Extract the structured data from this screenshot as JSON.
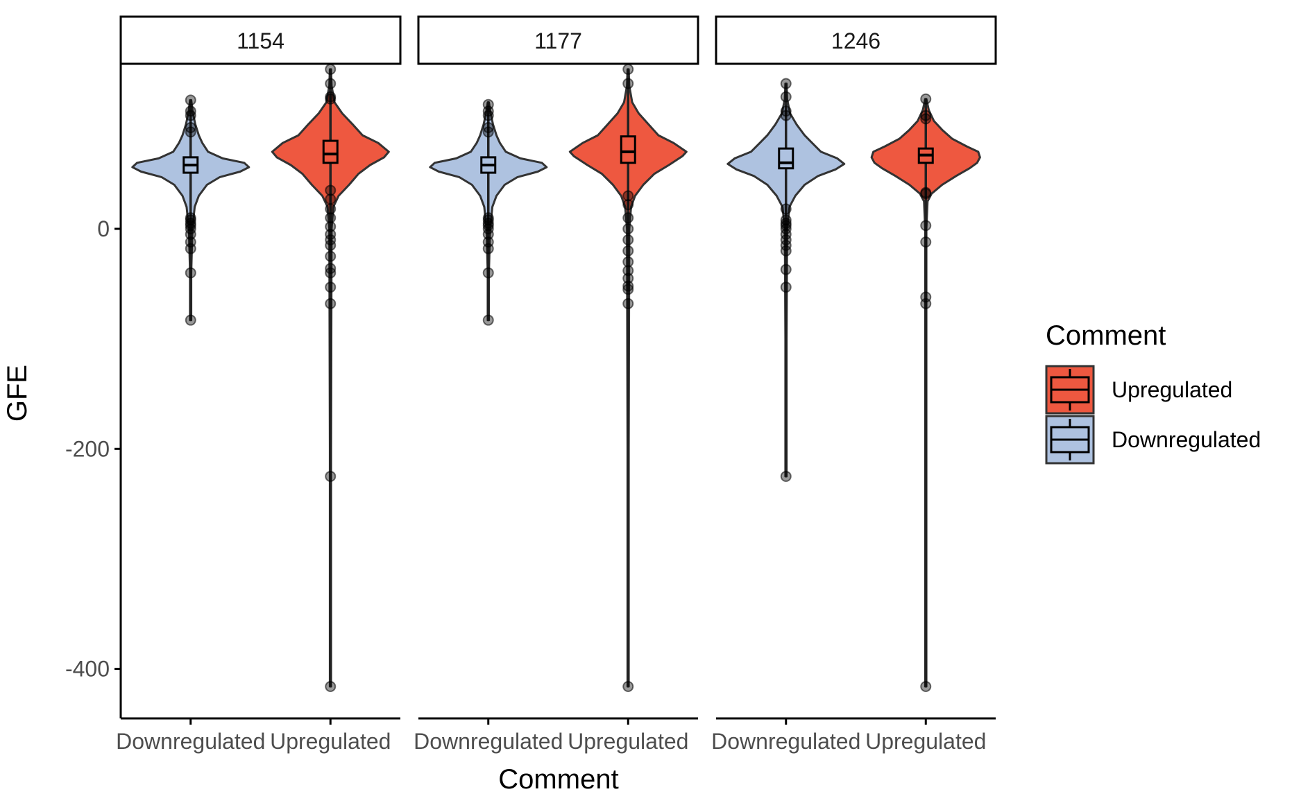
{
  "chart_data": {
    "type": "violin",
    "xlabel": "Comment",
    "ylabel": "GFE",
    "ylim": [
      -445,
      150
    ],
    "y_ticks": [
      0,
      -200,
      -400
    ],
    "y_tick_labels": [
      "0",
      "-200",
      "-400"
    ],
    "grid": false,
    "legend": {
      "title": "Comment",
      "position": "right",
      "entries": [
        {
          "label": "Upregulated",
          "color": "#EE5840"
        },
        {
          "label": "Downregulated",
          "color": "#AEC2E0"
        }
      ]
    },
    "categories": [
      "Downregulated",
      "Upregulated"
    ],
    "colors": {
      "Downregulated": "#AEC2E0",
      "Upregulated": "#EE5840"
    },
    "facets": [
      {
        "label": "1154",
        "groups": [
          {
            "name": "Downregulated",
            "min": -83,
            "q1": 51,
            "median": 58,
            "q3": 65,
            "max": 117,
            "violin": [
              [
                -83,
                0.01
              ],
              [
                -40,
                0.01
              ],
              [
                0,
                0.03
              ],
              [
                20,
                0.07
              ],
              [
                30,
                0.14
              ],
              [
                40,
                0.28
              ],
              [
                47,
                0.5
              ],
              [
                52,
                0.85
              ],
              [
                56,
                1.0
              ],
              [
                60,
                0.92
              ],
              [
                64,
                0.55
              ],
              [
                70,
                0.3
              ],
              [
                78,
                0.2
              ],
              [
                85,
                0.14
              ],
              [
                95,
                0.08
              ],
              [
                105,
                0.04
              ],
              [
                117,
                0.01
              ]
            ],
            "outliers": [
              -83,
              -40,
              -18,
              -12,
              -5,
              0,
              3,
              5,
              8,
              10,
              88,
              92,
              103,
              107,
              117
            ]
          },
          {
            "name": "Upregulated",
            "min": -416,
            "q1": 60,
            "median": 68,
            "q3": 80,
            "max": 145,
            "violin": [
              [
                -416,
                0.01
              ],
              [
                -200,
                0.01
              ],
              [
                0,
                0.02
              ],
              [
                20,
                0.05
              ],
              [
                30,
                0.14
              ],
              [
                40,
                0.32
              ],
              [
                50,
                0.48
              ],
              [
                58,
                0.68
              ],
              [
                65,
                0.92
              ],
              [
                70,
                1.0
              ],
              [
                78,
                0.82
              ],
              [
                85,
                0.55
              ],
              [
                95,
                0.38
              ],
              [
                105,
                0.2
              ],
              [
                115,
                0.07
              ],
              [
                130,
                0.02
              ],
              [
                145,
                0.01
              ]
            ],
            "outliers": [
              -416,
              -225,
              -68,
              -53,
              -40,
              -36,
              -25,
              -15,
              -10,
              -5,
              2,
              10,
              18,
              27,
              35,
              118,
              120,
              132,
              145
            ]
          }
        ]
      },
      {
        "label": "1177",
        "groups": [
          {
            "name": "Downregulated",
            "min": -83,
            "q1": 51,
            "median": 58,
            "q3": 65,
            "max": 115,
            "violin": [
              [
                -83,
                0.01
              ],
              [
                -40,
                0.01
              ],
              [
                0,
                0.03
              ],
              [
                20,
                0.07
              ],
              [
                30,
                0.14
              ],
              [
                40,
                0.28
              ],
              [
                47,
                0.5
              ],
              [
                52,
                0.85
              ],
              [
                56,
                1.0
              ],
              [
                60,
                0.92
              ],
              [
                64,
                0.55
              ],
              [
                70,
                0.3
              ],
              [
                78,
                0.2
              ],
              [
                85,
                0.14
              ],
              [
                95,
                0.08
              ],
              [
                105,
                0.04
              ],
              [
                115,
                0.01
              ]
            ],
            "outliers": [
              -83,
              -40,
              -18,
              -12,
              -5,
              0,
              3,
              5,
              8,
              10,
              88,
              92,
              103,
              107,
              113
            ]
          },
          {
            "name": "Upregulated",
            "min": -416,
            "q1": 60,
            "median": 70,
            "q3": 84,
            "max": 145,
            "violin": [
              [
                -416,
                0.01
              ],
              [
                -200,
                0.01
              ],
              [
                0,
                0.02
              ],
              [
                20,
                0.05
              ],
              [
                30,
                0.12
              ],
              [
                40,
                0.26
              ],
              [
                50,
                0.45
              ],
              [
                58,
                0.7
              ],
              [
                66,
                0.93
              ],
              [
                70,
                1.0
              ],
              [
                78,
                0.78
              ],
              [
                85,
                0.52
              ],
              [
                95,
                0.35
              ],
              [
                105,
                0.18
              ],
              [
                115,
                0.07
              ],
              [
                130,
                0.02
              ],
              [
                145,
                0.01
              ]
            ],
            "outliers": [
              -416,
              -68,
              -55,
              -52,
              -45,
              -38,
              -30,
              -20,
              -10,
              0,
              10,
              22,
              30,
              132,
              145
            ]
          }
        ]
      },
      {
        "label": "1246",
        "groups": [
          {
            "name": "Downregulated",
            "min": -225,
            "q1": 55,
            "median": 60,
            "q3": 73,
            "max": 132,
            "violin": [
              [
                -225,
                0.01
              ],
              [
                -100,
                0.01
              ],
              [
                0,
                0.02
              ],
              [
                20,
                0.06
              ],
              [
                30,
                0.16
              ],
              [
                40,
                0.32
              ],
              [
                48,
                0.55
              ],
              [
                54,
                0.85
              ],
              [
                59,
                1.0
              ],
              [
                64,
                0.88
              ],
              [
                70,
                0.6
              ],
              [
                78,
                0.45
              ],
              [
                85,
                0.32
              ],
              [
                95,
                0.18
              ],
              [
                105,
                0.07
              ],
              [
                118,
                0.02
              ],
              [
                132,
                0.01
              ]
            ],
            "outliers": [
              -225,
              -53,
              -37,
              -20,
              -15,
              -10,
              -5,
              0,
              3,
              5,
              8,
              18,
              103,
              107,
              120,
              132
            ]
          },
          {
            "name": "Upregulated",
            "min": -416,
            "q1": 60,
            "median": 67,
            "q3": 73,
            "max": 118,
            "violin": [
              [
                -416,
                0.01
              ],
              [
                -200,
                0.01
              ],
              [
                0,
                0.01
              ],
              [
                25,
                0.03
              ],
              [
                32,
                0.1
              ],
              [
                40,
                0.28
              ],
              [
                48,
                0.52
              ],
              [
                55,
                0.75
              ],
              [
                60,
                0.88
              ],
              [
                65,
                0.93
              ],
              [
                70,
                0.9
              ],
              [
                75,
                0.7
              ],
              [
                82,
                0.45
              ],
              [
                90,
                0.28
              ],
              [
                98,
                0.14
              ],
              [
                108,
                0.05
              ],
              [
                118,
                0.01
              ]
            ],
            "outliers": [
              -416,
              -68,
              -62,
              -12,
              3,
              32,
              33,
              100,
              103,
              118
            ]
          }
        ]
      }
    ]
  }
}
